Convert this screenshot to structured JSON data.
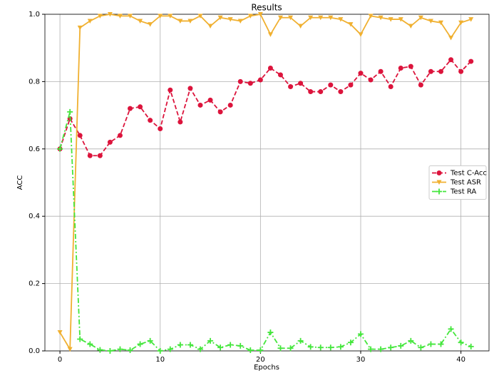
{
  "chart_data": {
    "type": "line",
    "title": "Results",
    "x_label": "Epochs",
    "y_label": "ACC",
    "x": [
      0,
      1,
      2,
      3,
      4,
      5,
      6,
      7,
      8,
      9,
      10,
      11,
      12,
      13,
      14,
      15,
      16,
      17,
      18,
      19,
      20,
      21,
      22,
      23,
      24,
      25,
      26,
      27,
      28,
      29,
      30,
      31,
      32,
      33,
      34,
      35,
      36,
      37,
      38,
      39,
      40,
      41
    ],
    "series": [
      {
        "name": "Test C-Acc",
        "color": "#dc143c",
        "linestyle": "dashed",
        "marker": "circle",
        "values": [
          0.6,
          0.69,
          0.64,
          0.58,
          0.58,
          0.62,
          0.64,
          0.72,
          0.725,
          0.685,
          0.66,
          0.775,
          0.68,
          0.78,
          0.73,
          0.745,
          0.71,
          0.73,
          0.8,
          0.795,
          0.805,
          0.84,
          0.82,
          0.785,
          0.795,
          0.77,
          0.77,
          0.79,
          0.77,
          0.79,
          0.825,
          0.805,
          0.83,
          0.785,
          0.84,
          0.845,
          0.79,
          0.83,
          0.83,
          0.865,
          0.83,
          0.86
        ]
      },
      {
        "name": "Test ASR",
        "color": "#f0b030",
        "linestyle": "solid",
        "marker": "triangle-down",
        "values": [
          0.055,
          0.005,
          0.96,
          0.98,
          0.995,
          1.0,
          0.995,
          0.995,
          0.98,
          0.97,
          0.995,
          0.995,
          0.98,
          0.98,
          0.995,
          0.965,
          0.99,
          0.985,
          0.98,
          0.995,
          1.0,
          0.94,
          0.99,
          0.99,
          0.965,
          0.99,
          0.99,
          0.99,
          0.985,
          0.97,
          0.94,
          0.995,
          0.99,
          0.985,
          0.985,
          0.965,
          0.99,
          0.98,
          0.975,
          0.93,
          0.975,
          0.985
        ]
      },
      {
        "name": "Test RA",
        "color": "#44e63c",
        "linestyle": "dashdot",
        "marker": "plus",
        "values": [
          0.6,
          0.71,
          0.035,
          0.02,
          0.003,
          0.0,
          0.005,
          0.002,
          0.02,
          0.03,
          0.0,
          0.005,
          0.018,
          0.018,
          0.005,
          0.03,
          0.01,
          0.018,
          0.015,
          0.002,
          0.002,
          0.055,
          0.008,
          0.008,
          0.03,
          0.012,
          0.01,
          0.01,
          0.012,
          0.025,
          0.05,
          0.005,
          0.005,
          0.01,
          0.015,
          0.03,
          0.01,
          0.02,
          0.02,
          0.065,
          0.025,
          0.013
        ]
      }
    ],
    "xlim": [
      -1.5,
      42.8
    ],
    "xticks": [
      0,
      10,
      20,
      30,
      40
    ],
    "ylim": [
      0,
      1
    ],
    "yticks": [
      {
        "value": 0,
        "label": "0.0"
      },
      0.2,
      0.4,
      0.6,
      0.8,
      {
        "value": 1,
        "label": "1.0"
      }
    ],
    "grid": true,
    "legend": "center right"
  }
}
